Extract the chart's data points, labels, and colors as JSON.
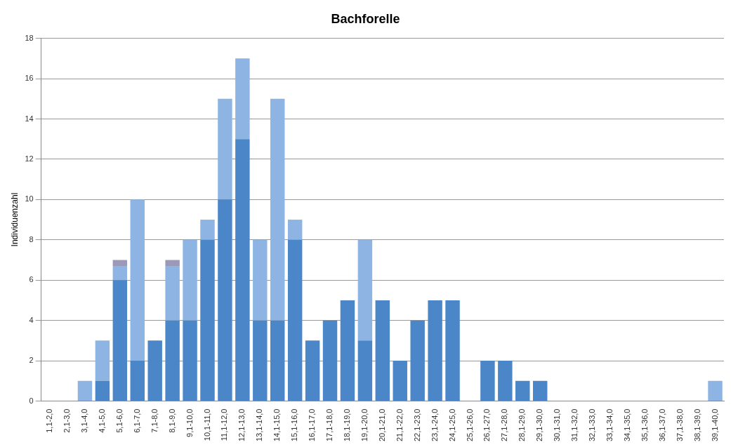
{
  "chart_data": {
    "type": "bar",
    "title": "Bachforelle",
    "ylabel": "Individuenzahl",
    "stacked": true,
    "categories": [
      "1,1-2,0",
      "2,1-3,0",
      "3,1-4,0",
      "4,1-5,0",
      "5,1-6,0",
      "6,1-7,0",
      "7,1-8,0",
      "8,1-9,0",
      "9,1-10,0",
      "10,1-11,0",
      "11,1-12,0",
      "12,1-13,0",
      "13,1-14,0",
      "14,1-15,0",
      "15,1-16,0",
      "16,1-17,0",
      "17,1-18,0",
      "18,1-19,0",
      "19,1-20,0",
      "20,1-21,0",
      "21,1-22,0",
      "22,1-23,0",
      "23,1-24,0",
      "24,1-25,0",
      "25,1-26,0",
      "26,1-27,0",
      "27,1-28,0",
      "28,1-29,0",
      "29,1-30,0",
      "30,1-31,0",
      "31,1-32,0",
      "32,1-33,0",
      "33,1-34,0",
      "34,1-35,0",
      "35,1-36,0",
      "36,1-37,0",
      "37,1-38,0",
      "38,1-39,0",
      "39,1-40,0"
    ],
    "series": [
      {
        "color": "#4a86c8",
        "values": [
          0,
          0,
          0,
          1,
          6,
          2,
          3,
          4,
          4,
          8,
          10,
          13,
          4,
          4,
          8,
          3,
          4,
          5,
          3,
          5,
          2,
          4,
          5,
          5,
          0,
          2,
          2,
          1,
          1,
          0,
          0,
          0,
          0,
          0,
          0,
          0,
          0,
          0,
          0
        ]
      },
      {
        "color": "#8db4e2",
        "values": [
          0,
          0,
          1,
          2,
          0.7,
          8,
          0,
          2.7,
          4,
          1,
          5,
          4,
          4,
          11,
          1,
          0,
          0,
          0,
          5,
          0,
          0,
          0,
          0,
          0,
          0,
          0,
          0,
          0,
          0,
          0,
          0,
          0,
          0,
          0,
          0,
          0,
          0,
          0,
          1
        ]
      },
      {
        "color": "#9a9ab8",
        "values": [
          0,
          0,
          0,
          0,
          0.3,
          0,
          0,
          0.3,
          0,
          0,
          0,
          0,
          0,
          0,
          0,
          0,
          0,
          0,
          0,
          0,
          0,
          0,
          0,
          0,
          0,
          0,
          0,
          0,
          0,
          0,
          0,
          0,
          0,
          0,
          0,
          0,
          0,
          0,
          0
        ]
      }
    ],
    "ylim": [
      0,
      18
    ],
    "yticks": [
      0,
      2,
      4,
      6,
      8,
      10,
      12,
      14,
      16,
      18
    ],
    "grid": "y",
    "legend": false
  }
}
